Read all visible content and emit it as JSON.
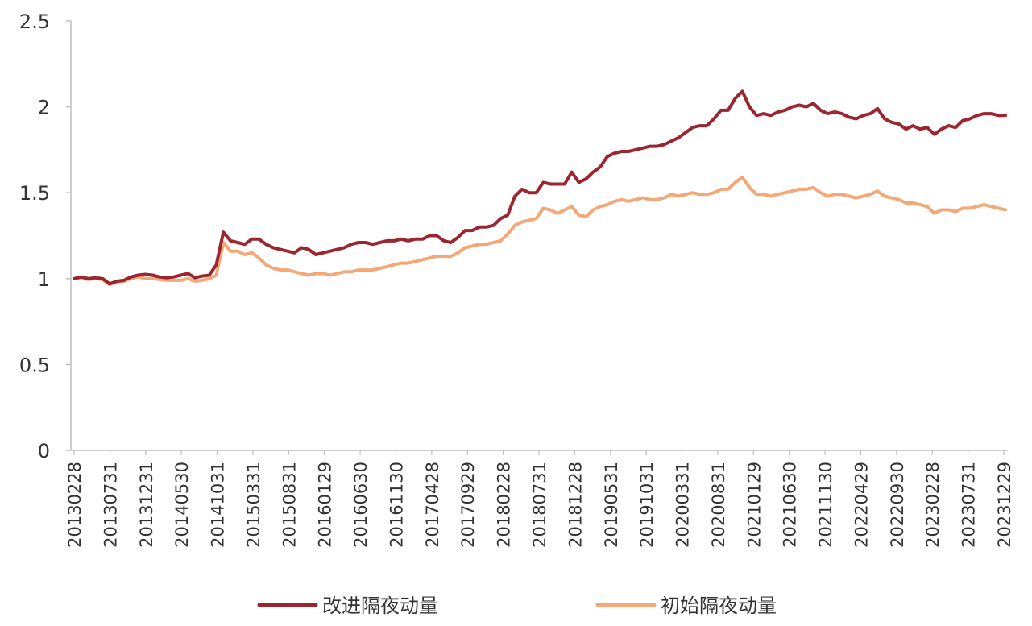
{
  "chart_data": {
    "type": "line",
    "title": "",
    "xlabel": "",
    "ylabel": "",
    "ylim": [
      0,
      2.5
    ],
    "yticks": [
      "0",
      "0.5",
      "1",
      "1.5",
      "2",
      "2.5"
    ],
    "xtick_labels": [
      "20130228",
      "20130731",
      "20131231",
      "20140530",
      "20141031",
      "20150331",
      "20150831",
      "20160129",
      "20160630",
      "20161130",
      "20170428",
      "20170929",
      "20180228",
      "20180731",
      "20181228",
      "20190531",
      "20191031",
      "20200331",
      "20200831",
      "20210129",
      "20210630",
      "20211130",
      "20220429",
      "20220930",
      "20230228",
      "20230731",
      "20231229"
    ],
    "grid": false,
    "legend_position": "bottom",
    "colors": {
      "series1": "#9B2630",
      "series2": "#F4A878",
      "axis": "#BFBFBF"
    },
    "series": [
      {
        "name": "改进隔夜动量",
        "values": [
          1.0,
          1.01,
          1.0,
          1.005,
          1.0,
          0.97,
          0.985,
          0.99,
          1.01,
          1.02,
          1.025,
          1.02,
          1.01,
          1.005,
          1.01,
          1.02,
          1.03,
          1.005,
          1.015,
          1.02,
          1.08,
          1.27,
          1.22,
          1.21,
          1.2,
          1.23,
          1.23,
          1.2,
          1.18,
          1.17,
          1.16,
          1.15,
          1.18,
          1.17,
          1.14,
          1.15,
          1.16,
          1.17,
          1.18,
          1.2,
          1.21,
          1.21,
          1.2,
          1.21,
          1.22,
          1.22,
          1.23,
          1.22,
          1.23,
          1.23,
          1.25,
          1.25,
          1.22,
          1.21,
          1.24,
          1.28,
          1.28,
          1.3,
          1.3,
          1.31,
          1.35,
          1.37,
          1.48,
          1.52,
          1.5,
          1.5,
          1.56,
          1.55,
          1.55,
          1.55,
          1.62,
          1.56,
          1.58,
          1.62,
          1.65,
          1.71,
          1.73,
          1.74,
          1.74,
          1.75,
          1.76,
          1.77,
          1.77,
          1.78,
          1.8,
          1.82,
          1.85,
          1.88,
          1.89,
          1.89,
          1.93,
          1.98,
          1.98,
          2.05,
          2.09,
          2.0,
          1.95,
          1.96,
          1.95,
          1.97,
          1.98,
          2.0,
          2.01,
          2.0,
          2.02,
          1.98,
          1.96,
          1.97,
          1.96,
          1.94,
          1.93,
          1.95,
          1.96,
          1.99,
          1.93,
          1.91,
          1.9,
          1.87,
          1.89,
          1.87,
          1.88,
          1.84,
          1.87,
          1.89,
          1.88,
          1.92,
          1.93,
          1.95,
          1.96,
          1.96,
          1.95,
          1.95
        ]
      },
      {
        "name": "初始隔夜动量",
        "values": [
          1.0,
          1.005,
          0.995,
          1.0,
          0.995,
          0.965,
          0.98,
          0.985,
          1.0,
          1.01,
          1.0,
          1.0,
          0.995,
          0.99,
          0.99,
          0.99,
          1.0,
          0.985,
          0.99,
          1.0,
          1.02,
          1.21,
          1.16,
          1.16,
          1.14,
          1.15,
          1.12,
          1.08,
          1.06,
          1.05,
          1.05,
          1.04,
          1.03,
          1.02,
          1.03,
          1.03,
          1.02,
          1.03,
          1.04,
          1.04,
          1.05,
          1.05,
          1.05,
          1.06,
          1.07,
          1.08,
          1.09,
          1.09,
          1.1,
          1.11,
          1.12,
          1.13,
          1.13,
          1.13,
          1.15,
          1.18,
          1.19,
          1.2,
          1.2,
          1.21,
          1.22,
          1.26,
          1.31,
          1.33,
          1.34,
          1.35,
          1.41,
          1.4,
          1.38,
          1.4,
          1.42,
          1.37,
          1.36,
          1.4,
          1.42,
          1.43,
          1.45,
          1.46,
          1.45,
          1.46,
          1.47,
          1.46,
          1.46,
          1.47,
          1.49,
          1.48,
          1.49,
          1.5,
          1.49,
          1.49,
          1.5,
          1.52,
          1.52,
          1.56,
          1.59,
          1.53,
          1.49,
          1.49,
          1.48,
          1.49,
          1.5,
          1.51,
          1.52,
          1.52,
          1.53,
          1.5,
          1.48,
          1.49,
          1.49,
          1.48,
          1.47,
          1.48,
          1.49,
          1.51,
          1.48,
          1.47,
          1.46,
          1.44,
          1.44,
          1.43,
          1.42,
          1.38,
          1.4,
          1.4,
          1.39,
          1.41,
          1.41,
          1.42,
          1.43,
          1.42,
          1.41,
          1.4
        ]
      }
    ]
  }
}
